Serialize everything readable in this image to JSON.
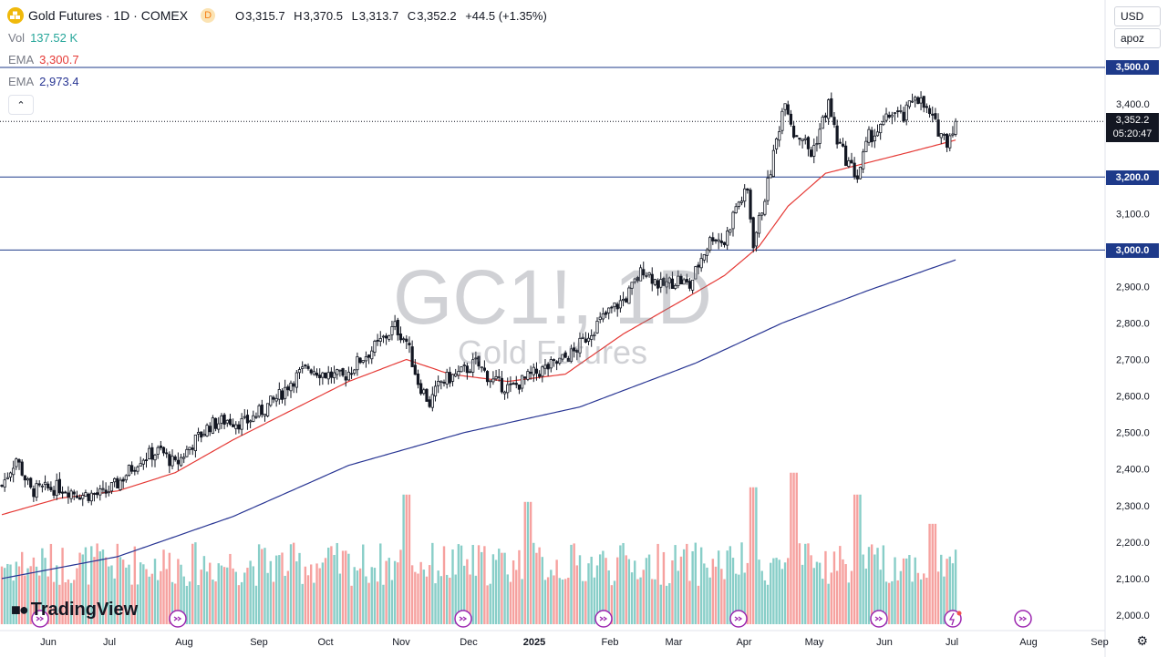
{
  "header": {
    "title": "Gold Futures · 1D · COMEX",
    "badge": "D",
    "ohlc": [
      {
        "k": "O",
        "v": "3,315.7"
      },
      {
        "k": "H",
        "v": "3,370.5"
      },
      {
        "k": "L",
        "v": "3,313.7"
      },
      {
        "k": "C",
        "v": "3,352.2"
      }
    ],
    "change": "+44.5 (+1.35%)"
  },
  "indicators": [
    {
      "label": "Vol",
      "value": "137.52 K",
      "color": "#26a69a"
    },
    {
      "label": "EMA",
      "value": "3,300.7",
      "color": "#e53935"
    },
    {
      "label": "EMA",
      "value": "2,973.4",
      "color": "#283593"
    }
  ],
  "currency": "USD",
  "scale_mode": "apoz",
  "watermark": {
    "symbol": "GC1!, 1D",
    "name": "Gold Futures"
  },
  "brand": "TradingView",
  "last_price": {
    "value": "3,352.2",
    "countdown": "05:20:47"
  },
  "colors": {
    "up": "#26a69a",
    "down": "#ef5350",
    "candle": "#131722",
    "ema_fast": "#e53935",
    "ema_slow": "#283593",
    "hline": "#1e3a8a"
  },
  "chart_data": {
    "type": "candlestick",
    "title": "Gold Futures · 1D · COMEX",
    "ylim": [
      1975,
      3540
    ],
    "y_ticks": [
      2000,
      2100,
      2200,
      2300,
      2400,
      2500,
      2600,
      2700,
      2800,
      2900,
      3000,
      3100,
      3200,
      3300,
      3400,
      3500
    ],
    "x_labels": [
      "Jun",
      "Jul",
      "Aug",
      "Sep",
      "Oct",
      "Nov",
      "Dec",
      "2025",
      "Feb",
      "Mar",
      "Apr",
      "May",
      "Jun",
      "Jul",
      "Aug",
      "Sep"
    ],
    "horizontal_levels": [
      3500,
      3200,
      3000
    ],
    "last_close": 3352.2,
    "close_path": [
      [
        0,
        2355
      ],
      [
        5,
        2430
      ],
      [
        10,
        2340
      ],
      [
        20,
        2350
      ],
      [
        28,
        2330
      ],
      [
        35,
        2330
      ],
      [
        40,
        2360
      ],
      [
        48,
        2430
      ],
      [
        55,
        2450
      ],
      [
        60,
        2410
      ],
      [
        66,
        2470
      ],
      [
        72,
        2520
      ],
      [
        78,
        2535
      ],
      [
        84,
        2525
      ],
      [
        90,
        2560
      ],
      [
        96,
        2600
      ],
      [
        100,
        2640
      ],
      [
        106,
        2680
      ],
      [
        112,
        2660
      ],
      [
        118,
        2650
      ],
      [
        124,
        2700
      ],
      [
        130,
        2740
      ],
      [
        136,
        2790
      ],
      [
        140,
        2750
      ],
      [
        144,
        2640
      ],
      [
        148,
        2580
      ],
      [
        152,
        2640
      ],
      [
        158,
        2660
      ],
      [
        164,
        2690
      ],
      [
        170,
        2640
      ],
      [
        176,
        2620
      ],
      [
        184,
        2660
      ],
      [
        192,
        2690
      ],
      [
        198,
        2720
      ],
      [
        204,
        2780
      ],
      [
        210,
        2830
      ],
      [
        216,
        2870
      ],
      [
        222,
        2950
      ],
      [
        228,
        2900
      ],
      [
        234,
        2920
      ],
      [
        238,
        2900
      ],
      [
        242,
        2980
      ],
      [
        246,
        3040
      ],
      [
        250,
        3020
      ],
      [
        254,
        3120
      ],
      [
        258,
        3160
      ],
      [
        260,
        3020
      ],
      [
        262,
        3080
      ],
      [
        265,
        3180
      ],
      [
        268,
        3300
      ],
      [
        271,
        3420
      ],
      [
        274,
        3320
      ],
      [
        277,
        3310
      ],
      [
        280,
        3260
      ],
      [
        283,
        3330
      ],
      [
        286,
        3400
      ],
      [
        289,
        3300
      ],
      [
        292,
        3250
      ],
      [
        296,
        3200
      ],
      [
        300,
        3310
      ],
      [
        304,
        3330
      ],
      [
        308,
        3380
      ],
      [
        312,
        3360
      ],
      [
        316,
        3430
      ],
      [
        320,
        3380
      ],
      [
        324,
        3330
      ],
      [
        327,
        3300
      ],
      [
        330,
        3352
      ]
    ],
    "series": [
      {
        "name": "EMA",
        "type": "line",
        "values": [
          [
            0,
            2275
          ],
          [
            20,
            2320
          ],
          [
            40,
            2340
          ],
          [
            60,
            2390
          ],
          [
            80,
            2480
          ],
          [
            100,
            2560
          ],
          [
            120,
            2640
          ],
          [
            140,
            2700
          ],
          [
            155,
            2660
          ],
          [
            175,
            2640
          ],
          [
            195,
            2660
          ],
          [
            215,
            2770
          ],
          [
            235,
            2860
          ],
          [
            250,
            2930
          ],
          [
            262,
            3010
          ],
          [
            272,
            3120
          ],
          [
            285,
            3210
          ],
          [
            300,
            3240
          ],
          [
            315,
            3270
          ],
          [
            330,
            3301
          ]
        ]
      },
      {
        "name": "EMA",
        "type": "line",
        "values": [
          [
            0,
            2100
          ],
          [
            40,
            2160
          ],
          [
            80,
            2270
          ],
          [
            120,
            2410
          ],
          [
            160,
            2500
          ],
          [
            200,
            2570
          ],
          [
            240,
            2690
          ],
          [
            270,
            2800
          ],
          [
            300,
            2890
          ],
          [
            330,
            2973
          ]
        ]
      },
      {
        "name": "Vol",
        "type": "bar",
        "peaks": [
          [
            140,
            2330
          ],
          [
            182,
            2310
          ],
          [
            260,
            2350
          ],
          [
            274,
            2390
          ],
          [
            296,
            2330
          ],
          [
            322,
            2250
          ]
        ]
      }
    ]
  }
}
